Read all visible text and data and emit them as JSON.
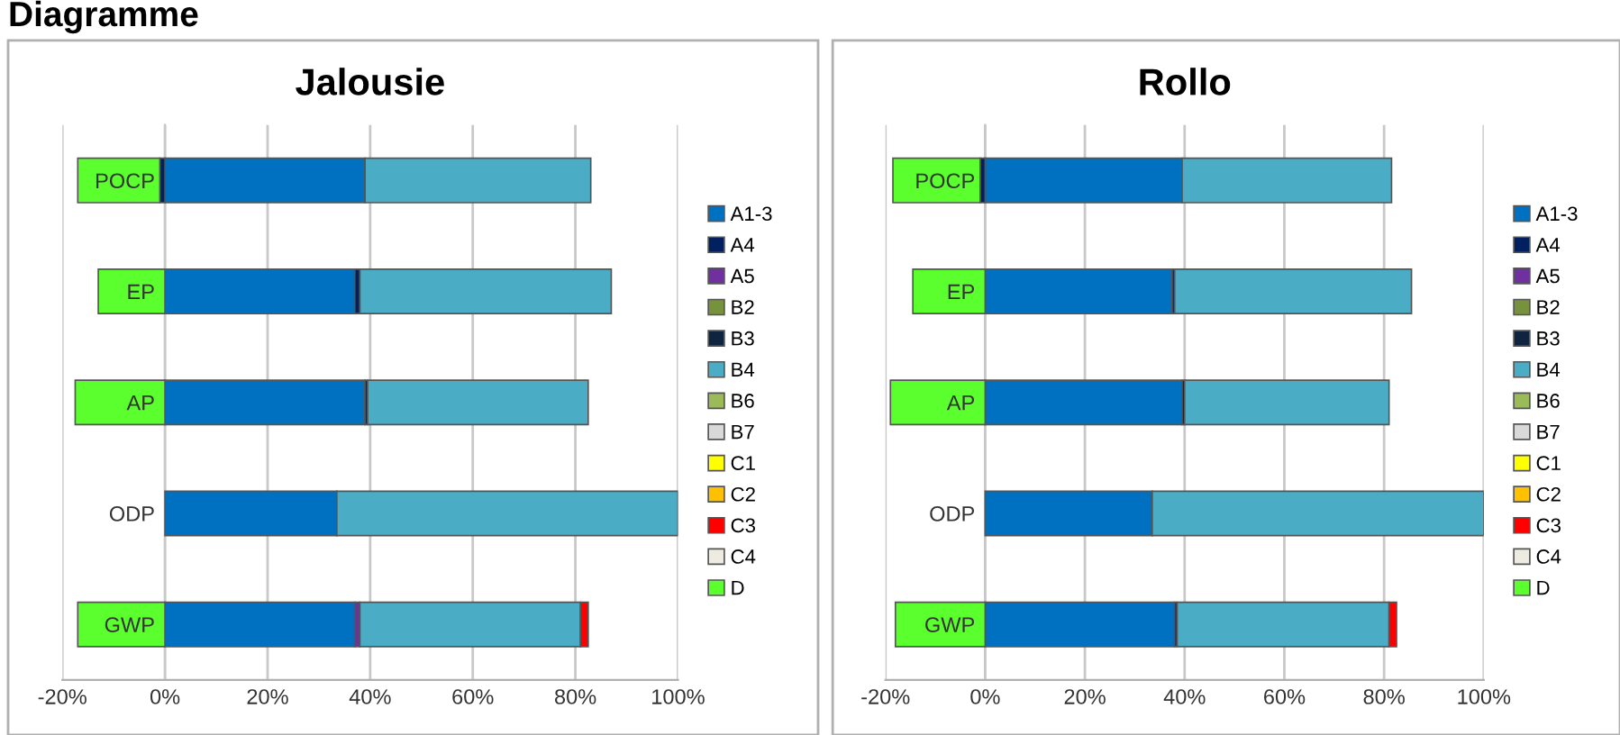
{
  "chart_data": [
    {
      "type": "bar",
      "orientation": "horizontal",
      "stacked": true,
      "title": "Jalousie",
      "annotations": [
        "Diagramme"
      ],
      "categories": [
        "POCP",
        "EP",
        "AP",
        "ODP",
        "GWP"
      ],
      "series": [
        {
          "name": "A1-3",
          "color": "#0070c0",
          "values": [
            39,
            37,
            39,
            33.5,
            37
          ]
        },
        {
          "name": "A4",
          "color": "#002060",
          "values": [
            -1,
            1,
            null,
            null,
            null
          ]
        },
        {
          "name": "A5",
          "color": "#7030a0",
          "values": [
            null,
            null,
            null,
            null,
            1
          ]
        },
        {
          "name": "B2",
          "color": "#76923c",
          "values": [
            null,
            null,
            null,
            null,
            null
          ]
        },
        {
          "name": "B3",
          "color": "#0f243e",
          "values": [
            null,
            null,
            0.5,
            null,
            null
          ]
        },
        {
          "name": "B4",
          "color": "#4bacc6",
          "values": [
            44,
            49,
            43,
            66.5,
            43
          ]
        },
        {
          "name": "B6",
          "color": "#9bbb59",
          "values": [
            null,
            null,
            null,
            null,
            null
          ]
        },
        {
          "name": "B7",
          "color": "#d9d9d9",
          "values": [
            null,
            null,
            null,
            null,
            null
          ]
        },
        {
          "name": "C1",
          "color": "#ffff00",
          "values": [
            null,
            null,
            null,
            null,
            null
          ]
        },
        {
          "name": "C2",
          "color": "#ffc000",
          "values": [
            null,
            null,
            null,
            null,
            null
          ]
        },
        {
          "name": "C3",
          "color": "#ff0000",
          "values": [
            null,
            null,
            null,
            null,
            1.5
          ]
        },
        {
          "name": "C4",
          "color": "#eeece1",
          "values": [
            null,
            null,
            null,
            null,
            null
          ]
        },
        {
          "name": "D",
          "color": "#5cff2e",
          "values": [
            -16,
            -13,
            -17.5,
            null,
            -17
          ]
        }
      ],
      "xlim": [
        -20,
        100
      ],
      "xticks": [
        {
          "value": -20,
          "label": "-20%"
        },
        {
          "value": 0,
          "label": "0%"
        },
        {
          "value": 20,
          "label": "20%"
        },
        {
          "value": 40,
          "label": "40%"
        },
        {
          "value": 60,
          "label": "60%"
        },
        {
          "value": 80,
          "label": "80%"
        },
        {
          "value": 100,
          "label": "100%"
        }
      ],
      "grid": "x",
      "legend": "right"
    },
    {
      "type": "bar",
      "orientation": "horizontal",
      "stacked": true,
      "title": "Rollo",
      "categories": [
        "POCP",
        "EP",
        "AP",
        "ODP",
        "GWP"
      ],
      "series": [
        {
          "name": "A1-3",
          "color": "#0070c0",
          "values": [
            39.5,
            37.5,
            39.5,
            33.5,
            38
          ]
        },
        {
          "name": "A4",
          "color": "#002060",
          "values": [
            -1,
            0.5,
            0.5,
            null,
            0.5
          ]
        },
        {
          "name": "A5",
          "color": "#7030a0",
          "values": [
            null,
            null,
            null,
            null,
            null
          ]
        },
        {
          "name": "B2",
          "color": "#76923c",
          "values": [
            null,
            null,
            null,
            null,
            null
          ]
        },
        {
          "name": "B3",
          "color": "#0f243e",
          "values": [
            null,
            null,
            null,
            null,
            null
          ]
        },
        {
          "name": "B4",
          "color": "#4bacc6",
          "values": [
            42,
            47.5,
            41,
            66.5,
            42.5
          ]
        },
        {
          "name": "B6",
          "color": "#9bbb59",
          "values": [
            null,
            null,
            null,
            null,
            null
          ]
        },
        {
          "name": "B7",
          "color": "#d9d9d9",
          "values": [
            null,
            null,
            null,
            null,
            null
          ]
        },
        {
          "name": "C1",
          "color": "#ffff00",
          "values": [
            null,
            null,
            null,
            null,
            null
          ]
        },
        {
          "name": "C2",
          "color": "#ffc000",
          "values": [
            null,
            null,
            null,
            null,
            null
          ]
        },
        {
          "name": "C3",
          "color": "#ff0000",
          "values": [
            null,
            null,
            null,
            null,
            1.5
          ]
        },
        {
          "name": "C4",
          "color": "#eeece1",
          "values": [
            null,
            null,
            null,
            null,
            null
          ]
        },
        {
          "name": "D",
          "color": "#5cff2e",
          "values": [
            -17.5,
            -14.5,
            -19,
            null,
            -18
          ]
        }
      ],
      "xlim": [
        -20,
        100
      ],
      "xticks": [
        {
          "value": -20,
          "label": "-20%"
        },
        {
          "value": 0,
          "label": "0%"
        },
        {
          "value": 20,
          "label": "20%"
        },
        {
          "value": 40,
          "label": "40%"
        },
        {
          "value": 60,
          "label": "60%"
        },
        {
          "value": 80,
          "label": "80%"
        },
        {
          "value": 100,
          "label": "100%"
        }
      ],
      "grid": "x",
      "legend": "right"
    }
  ]
}
